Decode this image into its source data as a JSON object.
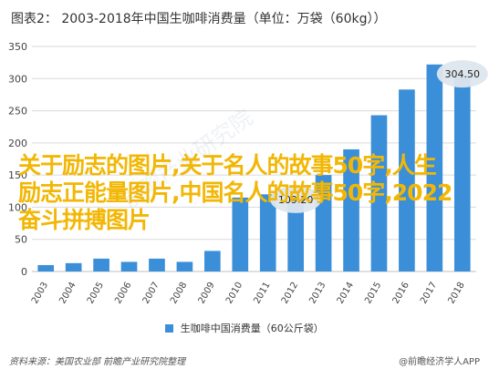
{
  "title": "图表2：  2003-2018年中国生咖啡消费量（单位：万袋（60kg））",
  "chart_data": {
    "type": "bar",
    "categories": [
      "2003",
      "2004",
      "2005",
      "2006",
      "2007",
      "2008",
      "2009",
      "2010",
      "2011",
      "2012",
      "2013",
      "2014",
      "2015",
      "2016",
      "2017",
      "2018"
    ],
    "series": [
      {
        "name": "生咖啡中国消费量（60公斤袋）",
        "values": [
          10,
          13,
          20,
          15,
          20,
          15,
          32,
          115,
          120,
          109.2,
          150,
          190,
          243,
          283,
          322,
          304.5
        ]
      }
    ],
    "ylim": [
      0,
      350
    ],
    "yticks": [
      0,
      50,
      100,
      150,
      200,
      250,
      300,
      350
    ],
    "grid": true,
    "callouts": [
      {
        "category": "2012",
        "text": "109.20"
      },
      {
        "category": "2018",
        "text": "304.50"
      }
    ]
  },
  "legend_label": "生咖啡中国消费量（60公斤袋）",
  "source": "资料来源：美国农业部 前瞻产业研究院整理",
  "brand": "@前瞻经济学人APP",
  "watermark": "前瞻产业研究院",
  "overlay_text": "关于励志的图片,关于名人的故事50字,人生励志正能量图片,中国名人的故事50字,2022奋斗拼搏图片",
  "colors": {
    "bar": "#3b8fd8",
    "grid": "#d9d9d9",
    "overlay": "#f2b705"
  }
}
